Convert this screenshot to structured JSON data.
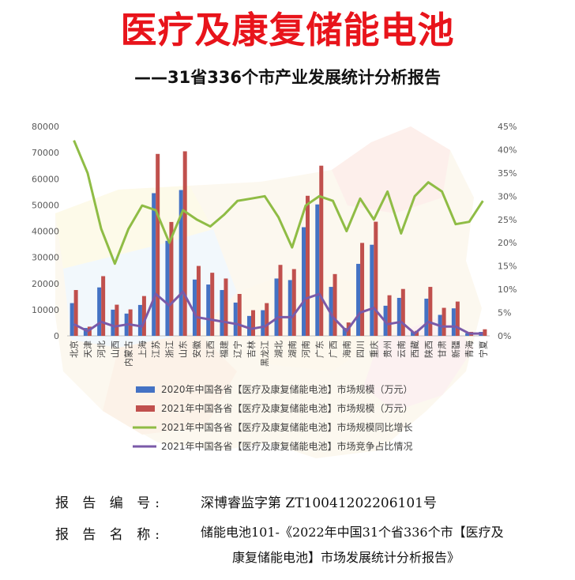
{
  "header": {
    "title": "医疗及康复储能电池",
    "subtitle": "——31省336个市产业发展统计分析报告"
  },
  "report": {
    "number_label": "报 告 编 号:",
    "number_value": "深博睿监字第 ZT10041202206101号",
    "name_label": "报 告 名 称:",
    "name_line1": "储能电池101-《2022年中国31个省336个市【医疗及",
    "name_line2": "康复储能电池】市场发展统计分析报告》"
  },
  "colors": {
    "series_2020": "#4472c4",
    "series_2021": "#c0504d",
    "growth_line": "#8fbc45",
    "share_line": "#7a5aa8"
  },
  "chart_data": {
    "type": "bar",
    "categories": [
      "北京",
      "天津",
      "河北",
      "山西",
      "内蒙古",
      "上海",
      "江苏",
      "浙江",
      "山东",
      "安徽",
      "江西",
      "福建",
      "辽宁",
      "吉林",
      "黑龙江",
      "湖北",
      "湖南",
      "河南",
      "广东",
      "广西",
      "海南",
      "四川",
      "重庆",
      "贵州",
      "云南",
      "西藏",
      "陕西",
      "甘肃",
      "新疆",
      "青海",
      "宁夏"
    ],
    "y_left": {
      "ylim": [
        0,
        80000
      ],
      "ticks": [
        "0",
        "10000",
        "20000",
        "30000",
        "40000",
        "50000",
        "60000",
        "70000",
        "80000"
      ]
    },
    "y_right": {
      "ylim": [
        0,
        45
      ],
      "ticks": [
        "0%",
        "5%",
        "10%",
        "15%",
        "20%",
        "25%",
        "30%",
        "35%",
        "40%",
        "45%"
      ]
    },
    "series": [
      {
        "name": "2020年中国各省【医疗及康复储能电池】市场规模（万元）",
        "type": "bar",
        "axis": "left",
        "values": [
          12500,
          3000,
          18500,
          10000,
          8500,
          11800,
          54500,
          36300,
          55700,
          21500,
          19600,
          17500,
          12700,
          7600,
          9800,
          21900,
          21300,
          41500,
          50200,
          18700,
          3000,
          27500,
          34800,
          11500,
          14500,
          1500,
          14200,
          8000,
          10500,
          1000,
          1500
        ]
      },
      {
        "name": "2021年中国各省【医疗及康复储能电池】市场规模（万元）",
        "type": "bar",
        "axis": "left",
        "values": [
          17500,
          3500,
          22800,
          11900,
          10100,
          15200,
          69500,
          43500,
          70500,
          26700,
          24100,
          21900,
          16000,
          9800,
          12500,
          27100,
          25500,
          53500,
          65000,
          23600,
          5100,
          35500,
          43600,
          15500,
          17900,
          1900,
          18700,
          10700,
          13100,
          1500,
          2500
        ]
      },
      {
        "name": "2021年中国各省【医疗及康复储能电池】市场规模同比增长",
        "type": "line",
        "axis": "right",
        "values": [
          42,
          35,
          23,
          15.5,
          23,
          28,
          27,
          20,
          27,
          25,
          23.5,
          26,
          29,
          29.5,
          30,
          25.5,
          19,
          28,
          30,
          29,
          22.5,
          29.5,
          25,
          31,
          22,
          30,
          33,
          31,
          24,
          24.5,
          29
        ]
      },
      {
        "name": "2021年中国各省【医疗及康复储能电池】市场竞争占比情况",
        "type": "line",
        "axis": "right",
        "values": [
          2.5,
          1,
          3,
          2,
          2.5,
          2,
          9,
          6.5,
          9.5,
          4,
          3.5,
          3,
          2.5,
          1.5,
          2,
          4,
          4,
          8,
          9,
          4,
          1,
          5,
          6,
          2.5,
          3,
          0.5,
          3,
          2,
          2,
          0.5,
          0.5
        ]
      }
    ]
  }
}
